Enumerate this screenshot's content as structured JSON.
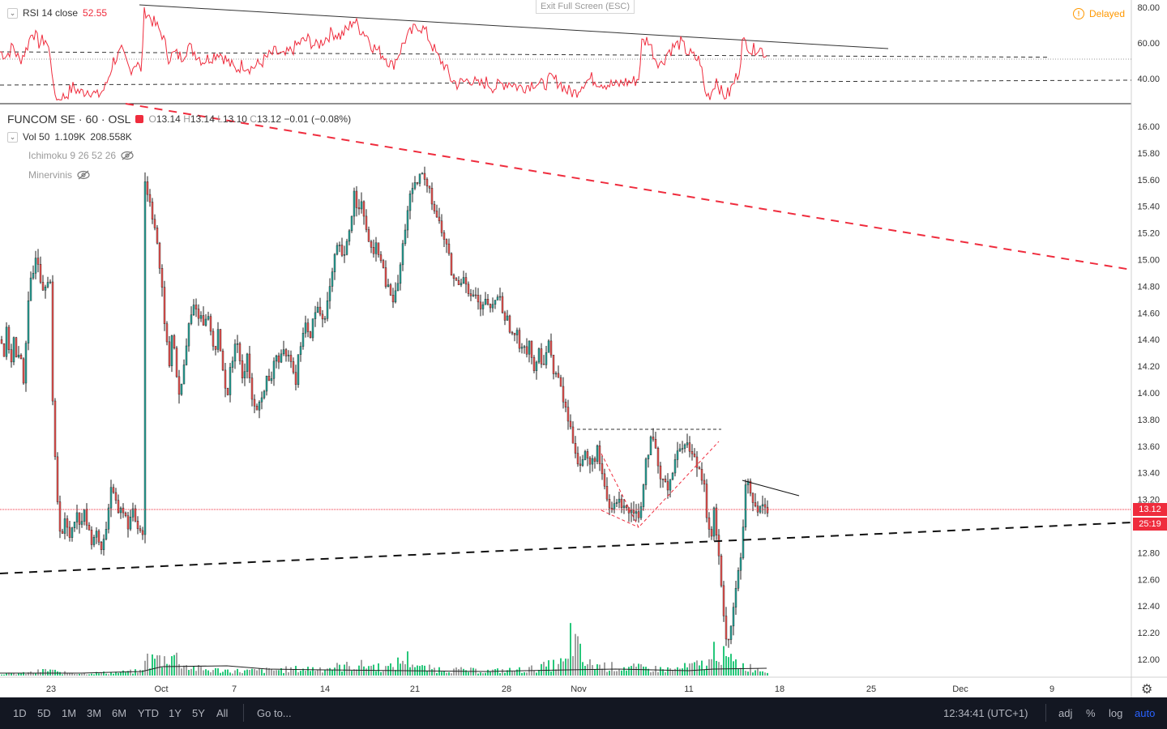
{
  "fullscreen_hint": "Exit Full Screen (ESC)",
  "delayed": {
    "label": "Delayed",
    "icon": "alert-circle-icon",
    "color": "#ff9800"
  },
  "rsi": {
    "label": "RSI 14 close",
    "value": "52.55",
    "ticks": [
      "80.00",
      "60.00",
      "40.00"
    ]
  },
  "symbol": {
    "name": "FUNCOM SE · 60 · OSL",
    "open": "13.14",
    "high": "13.14",
    "low": "13.10",
    "close": "13.12",
    "change": "−0.01 (−0.08%)"
  },
  "volume": {
    "label": "Vol 50",
    "value1": "1.109K",
    "value2": "208.558K"
  },
  "indicators": [
    {
      "name": "Ichimoku 9 26 52 26",
      "icon": "eye-hidden-icon"
    },
    {
      "name": "Minervinis",
      "icon": "eye-hidden-icon"
    }
  ],
  "price_badge": "13.12",
  "timer_badge": "25:19",
  "toolbar": {
    "ranges": [
      "1D",
      "5D",
      "1M",
      "3M",
      "6M",
      "YTD",
      "1Y",
      "5Y",
      "All"
    ],
    "goto": "Go to...",
    "time": "12:34:41 (UTC+1)",
    "adj": "adj",
    "percent": "%",
    "log": "log",
    "auto": "auto"
  },
  "colors": {
    "up": "#26a69a",
    "down": "#ef5350",
    "rsi": "#ef2c3d",
    "trend_red": "#ef2c3d",
    "vol_up": "#26c77a",
    "vol_down": "#a0a0a0"
  },
  "chart_data": {
    "type": "candlestick",
    "interval": "60",
    "x_ticks": [
      "23",
      "Oct",
      "7",
      "14",
      "21",
      "28",
      "Nov",
      "11",
      "18",
      "25",
      "Dec",
      "9"
    ],
    "price_ticks": [
      "16.00",
      "15.80",
      "15.60",
      "15.40",
      "15.20",
      "15.00",
      "14.80",
      "14.60",
      "14.40",
      "14.20",
      "14.00",
      "13.80",
      "13.60",
      "13.40",
      "13.20",
      "13.00",
      "12.80",
      "12.60",
      "12.40",
      "12.20",
      "12.00"
    ],
    "ylim": [
      11.9,
      16.1
    ],
    "last_price": 13.12,
    "price_path": [
      [
        0,
        14.4
      ],
      [
        4,
        14.3
      ],
      [
        8,
        14.5
      ],
      [
        12,
        14.2
      ],
      [
        16,
        14.4
      ],
      [
        20,
        14.2
      ],
      [
        24,
        14.3
      ],
      [
        28,
        14.1
      ],
      [
        32,
        14.5
      ],
      [
        36,
        14.8
      ],
      [
        40,
        14.9
      ],
      [
        44,
        15.1
      ],
      [
        48,
        14.9
      ],
      [
        52,
        14.8
      ],
      [
        56,
        14.85
      ],
      [
        60,
        14.9
      ],
      [
        63,
        14.7
      ],
      [
        64,
        13.9
      ],
      [
        66,
        13.6
      ],
      [
        68,
        13.4
      ],
      [
        70,
        13.2
      ],
      [
        73,
        13.0
      ],
      [
        76,
        12.95
      ],
      [
        80,
        13.05
      ],
      [
        84,
        12.9
      ],
      [
        88,
        13.0
      ],
      [
        92,
        13.1
      ],
      [
        96,
        13.05
      ],
      [
        100,
        13.05
      ],
      [
        104,
        13.1
      ],
      [
        108,
        12.95
      ],
      [
        112,
        12.9
      ],
      [
        116,
        12.95
      ],
      [
        120,
        12.9
      ],
      [
        124,
        12.85
      ],
      [
        128,
        12.9
      ],
      [
        132,
        13.1
      ],
      [
        136,
        13.3
      ],
      [
        140,
        13.2
      ],
      [
        144,
        13.1
      ],
      [
        148,
        13.15
      ],
      [
        152,
        13.1
      ],
      [
        156,
        13.0
      ],
      [
        160,
        13.05
      ],
      [
        164,
        13.1
      ],
      [
        168,
        13.0
      ],
      [
        172,
        13.0
      ],
      [
        175,
        12.95
      ],
      [
        176,
        15.7
      ],
      [
        178,
        15.6
      ],
      [
        180,
        15.5
      ],
      [
        184,
        15.45
      ],
      [
        188,
        15.3
      ],
      [
        192,
        15.2
      ],
      [
        196,
        14.9
      ],
      [
        200,
        14.7
      ],
      [
        204,
        14.4
      ],
      [
        208,
        14.2
      ],
      [
        212,
        14.5
      ],
      [
        216,
        14.2
      ],
      [
        220,
        13.95
      ],
      [
        224,
        14.1
      ],
      [
        228,
        14.3
      ],
      [
        232,
        14.5
      ],
      [
        236,
        14.6
      ],
      [
        240,
        14.7
      ],
      [
        244,
        14.55
      ],
      [
        248,
        14.6
      ],
      [
        252,
        14.5
      ],
      [
        256,
        14.6
      ],
      [
        260,
        14.4
      ],
      [
        264,
        14.3
      ],
      [
        268,
        14.5
      ],
      [
        272,
        14.2
      ],
      [
        276,
        14.1
      ],
      [
        280,
        14.0
      ],
      [
        284,
        14.2
      ],
      [
        288,
        14.3
      ],
      [
        292,
        14.4
      ],
      [
        296,
        14.2
      ],
      [
        300,
        14.1
      ],
      [
        304,
        14.3
      ],
      [
        308,
        14.0
      ],
      [
        312,
        13.9
      ],
      [
        316,
        13.85
      ],
      [
        320,
        14.0
      ],
      [
        324,
        13.95
      ],
      [
        328,
        14.1
      ],
      [
        332,
        14.05
      ],
      [
        336,
        14.2
      ],
      [
        340,
        14.3
      ],
      [
        344,
        14.2
      ],
      [
        348,
        14.3
      ],
      [
        352,
        14.25
      ],
      [
        356,
        14.35
      ],
      [
        360,
        14.2
      ],
      [
        364,
        14.1
      ],
      [
        368,
        14.3
      ],
      [
        372,
        14.45
      ],
      [
        376,
        14.5
      ],
      [
        380,
        14.4
      ],
      [
        384,
        14.5
      ],
      [
        388,
        14.6
      ],
      [
        392,
        14.65
      ],
      [
        396,
        14.55
      ],
      [
        400,
        14.6
      ],
      [
        404,
        14.7
      ],
      [
        408,
        14.85
      ],
      [
        412,
        15.0
      ],
      [
        416,
        15.1
      ],
      [
        420,
        15.05
      ],
      [
        424,
        15.0
      ],
      [
        428,
        15.15
      ],
      [
        432,
        15.3
      ],
      [
        436,
        15.5
      ],
      [
        440,
        15.4
      ],
      [
        444,
        15.45
      ],
      [
        448,
        15.3
      ],
      [
        452,
        15.2
      ],
      [
        456,
        15.1
      ],
      [
        460,
        15.0
      ],
      [
        464,
        15.15
      ],
      [
        468,
        15.0
      ],
      [
        472,
        14.9
      ],
      [
        476,
        14.8
      ],
      [
        480,
        14.75
      ],
      [
        484,
        14.7
      ],
      [
        488,
        14.75
      ],
      [
        492,
        14.9
      ],
      [
        496,
        15.1
      ],
      [
        500,
        15.3
      ],
      [
        504,
        15.45
      ],
      [
        508,
        15.5
      ],
      [
        512,
        15.55
      ],
      [
        516,
        15.6
      ],
      [
        520,
        15.65
      ],
      [
        524,
        15.55
      ],
      [
        528,
        15.6
      ],
      [
        532,
        15.45
      ],
      [
        536,
        15.35
      ],
      [
        540,
        15.3
      ],
      [
        544,
        15.2
      ],
      [
        548,
        15.15
      ],
      [
        552,
        15.05
      ],
      [
        556,
        14.9
      ],
      [
        560,
        14.85
      ],
      [
        564,
        14.8
      ],
      [
        568,
        14.85
      ],
      [
        572,
        14.9
      ],
      [
        576,
        14.8
      ],
      [
        580,
        14.7
      ],
      [
        584,
        14.75
      ],
      [
        588,
        14.7
      ],
      [
        592,
        14.6
      ],
      [
        596,
        14.65
      ],
      [
        600,
        14.7
      ],
      [
        604,
        14.6
      ],
      [
        608,
        14.65
      ],
      [
        612,
        14.75
      ],
      [
        616,
        14.7
      ],
      [
        620,
        14.6
      ],
      [
        624,
        14.55
      ],
      [
        628,
        14.5
      ],
      [
        632,
        14.4
      ],
      [
        636,
        14.45
      ],
      [
        640,
        14.35
      ],
      [
        644,
        14.4
      ],
      [
        648,
        14.3
      ],
      [
        652,
        14.4
      ],
      [
        656,
        14.2
      ],
      [
        660,
        14.15
      ],
      [
        664,
        14.3
      ],
      [
        668,
        14.2
      ],
      [
        672,
        14.3
      ],
      [
        676,
        14.4
      ],
      [
        680,
        14.2
      ],
      [
        684,
        14.15
      ],
      [
        688,
        14.1
      ],
      [
        692,
        14.0
      ],
      [
        696,
        13.9
      ],
      [
        700,
        13.8
      ],
      [
        704,
        13.7
      ],
      [
        708,
        13.6
      ],
      [
        712,
        13.5
      ],
      [
        716,
        13.45
      ],
      [
        720,
        13.55
      ],
      [
        724,
        13.5
      ],
      [
        728,
        13.45
      ],
      [
        732,
        13.5
      ],
      [
        736,
        13.6
      ],
      [
        740,
        13.4
      ],
      [
        744,
        13.3
      ],
      [
        748,
        13.2
      ],
      [
        752,
        13.1
      ],
      [
        756,
        13.15
      ],
      [
        760,
        13.2
      ],
      [
        764,
        13.15
      ],
      [
        768,
        13.2
      ],
      [
        772,
        13.15
      ],
      [
        776,
        13.1
      ],
      [
        780,
        13.15
      ],
      [
        784,
        13.1
      ],
      [
        788,
        13.05
      ],
      [
        792,
        13.3
      ],
      [
        796,
        13.5
      ],
      [
        800,
        13.6
      ],
      [
        804,
        13.65
      ],
      [
        808,
        13.55
      ],
      [
        812,
        13.4
      ],
      [
        816,
        13.3
      ],
      [
        820,
        13.35
      ],
      [
        824,
        13.3
      ],
      [
        828,
        13.4
      ],
      [
        832,
        13.5
      ],
      [
        836,
        13.55
      ],
      [
        840,
        13.6
      ],
      [
        844,
        13.65
      ],
      [
        848,
        13.6
      ],
      [
        852,
        13.55
      ],
      [
        856,
        13.5
      ],
      [
        860,
        13.45
      ],
      [
        864,
        13.4
      ],
      [
        868,
        13.35
      ],
      [
        872,
        13.0
      ],
      [
        876,
        12.9
      ],
      [
        880,
        13.1
      ],
      [
        884,
        12.9
      ],
      [
        888,
        12.6
      ],
      [
        892,
        12.3
      ],
      [
        896,
        12.15
      ],
      [
        900,
        12.2
      ],
      [
        904,
        12.4
      ],
      [
        908,
        12.6
      ],
      [
        912,
        12.7
      ],
      [
        914,
        12.75
      ],
      [
        916,
        13.0
      ],
      [
        918,
        13.3
      ],
      [
        922,
        13.3
      ],
      [
        926,
        13.2
      ],
      [
        930,
        13.15
      ],
      [
        934,
        13.1
      ],
      [
        938,
        13.15
      ],
      [
        942,
        13.2
      ],
      [
        946,
        13.12
      ]
    ],
    "rsi_ylim": [
      25,
      82
    ],
    "rsi_ticks": [
      80,
      60,
      40
    ],
    "rsi_levels": [
      55,
      50,
      35
    ],
    "rsi_path": [
      [
        0,
        55
      ],
      [
        8,
        53
      ],
      [
        16,
        58
      ],
      [
        24,
        50
      ],
      [
        32,
        56
      ],
      [
        40,
        67
      ],
      [
        48,
        60
      ],
      [
        56,
        62
      ],
      [
        63,
        52
      ],
      [
        66,
        33
      ],
      [
        72,
        28
      ],
      [
        80,
        30
      ],
      [
        90,
        35
      ],
      [
        100,
        32
      ],
      [
        110,
        34
      ],
      [
        120,
        30
      ],
      [
        130,
        35
      ],
      [
        140,
        50
      ],
      [
        150,
        55
      ],
      [
        160,
        45
      ],
      [
        170,
        50
      ],
      [
        175,
        40
      ],
      [
        177,
        80
      ],
      [
        184,
        75
      ],
      [
        192,
        70
      ],
      [
        200,
        65
      ],
      [
        208,
        52
      ],
      [
        216,
        54
      ],
      [
        224,
        52
      ],
      [
        232,
        58
      ],
      [
        240,
        55
      ],
      [
        250,
        50
      ],
      [
        260,
        52
      ],
      [
        270,
        55
      ],
      [
        280,
        50
      ],
      [
        290,
        45
      ],
      [
        300,
        48
      ],
      [
        310,
        46
      ],
      [
        320,
        48
      ],
      [
        330,
        52
      ],
      [
        340,
        55
      ],
      [
        350,
        52
      ],
      [
        360,
        56
      ],
      [
        370,
        60
      ],
      [
        380,
        62
      ],
      [
        390,
        58
      ],
      [
        400,
        62
      ],
      [
        410,
        66
      ],
      [
        420,
        64
      ],
      [
        430,
        68
      ],
      [
        436,
        73
      ],
      [
        444,
        68
      ],
      [
        452,
        65
      ],
      [
        460,
        58
      ],
      [
        468,
        55
      ],
      [
        476,
        52
      ],
      [
        484,
        47
      ],
      [
        492,
        54
      ],
      [
        500,
        62
      ],
      [
        508,
        66
      ],
      [
        516,
        70
      ],
      [
        524,
        67
      ],
      [
        532,
        60
      ],
      [
        540,
        52
      ],
      [
        548,
        48
      ],
      [
        556,
        40
      ],
      [
        564,
        37
      ],
      [
        572,
        38
      ],
      [
        580,
        40
      ],
      [
        590,
        36
      ],
      [
        600,
        38
      ],
      [
        610,
        35
      ],
      [
        620,
        37
      ],
      [
        630,
        38
      ],
      [
        640,
        35
      ],
      [
        650,
        36
      ],
      [
        660,
        38
      ],
      [
        670,
        36
      ],
      [
        680,
        40
      ],
      [
        690,
        38
      ],
      [
        700,
        33
      ],
      [
        710,
        32
      ],
      [
        720,
        38
      ],
      [
        730,
        40
      ],
      [
        740,
        38
      ],
      [
        750,
        37
      ],
      [
        760,
        36
      ],
      [
        770,
        38
      ],
      [
        780,
        38
      ],
      [
        788,
        40
      ],
      [
        792,
        60
      ],
      [
        800,
        62
      ],
      [
        808,
        52
      ],
      [
        816,
        48
      ],
      [
        824,
        55
      ],
      [
        832,
        58
      ],
      [
        840,
        60
      ],
      [
        848,
        55
      ],
      [
        856,
        52
      ],
      [
        864,
        50
      ],
      [
        870,
        32
      ],
      [
        876,
        30
      ],
      [
        884,
        40
      ],
      [
        892,
        30
      ],
      [
        900,
        32
      ],
      [
        906,
        38
      ],
      [
        912,
        45
      ],
      [
        916,
        60
      ],
      [
        922,
        60
      ],
      [
        928,
        55
      ],
      [
        934,
        58
      ],
      [
        940,
        56
      ],
      [
        946,
        53
      ]
    ],
    "volume_path": [
      [
        0,
        1.2
      ],
      [
        30,
        1.5
      ],
      [
        63,
        4
      ],
      [
        70,
        2
      ],
      [
        100,
        1.5
      ],
      [
        140,
        2
      ],
      [
        175,
        3
      ],
      [
        176,
        26
      ],
      [
        182,
        8
      ],
      [
        190,
        12
      ],
      [
        200,
        10
      ],
      [
        210,
        15
      ],
      [
        230,
        6
      ],
      [
        250,
        4
      ],
      [
        300,
        3
      ],
      [
        350,
        4
      ],
      [
        400,
        5
      ],
      [
        420,
        6
      ],
      [
        450,
        7
      ],
      [
        480,
        5
      ],
      [
        500,
        12
      ],
      [
        520,
        5
      ],
      [
        550,
        4
      ],
      [
        600,
        3
      ],
      [
        650,
        4
      ],
      [
        700,
        9
      ],
      [
        703,
        27
      ],
      [
        712,
        18
      ],
      [
        720,
        8
      ],
      [
        750,
        6
      ],
      [
        790,
        5
      ],
      [
        830,
        4
      ],
      [
        878,
        9
      ],
      [
        882,
        25
      ],
      [
        888,
        14
      ],
      [
        900,
        10
      ],
      [
        920,
        6
      ],
      [
        946,
        3
      ]
    ]
  }
}
